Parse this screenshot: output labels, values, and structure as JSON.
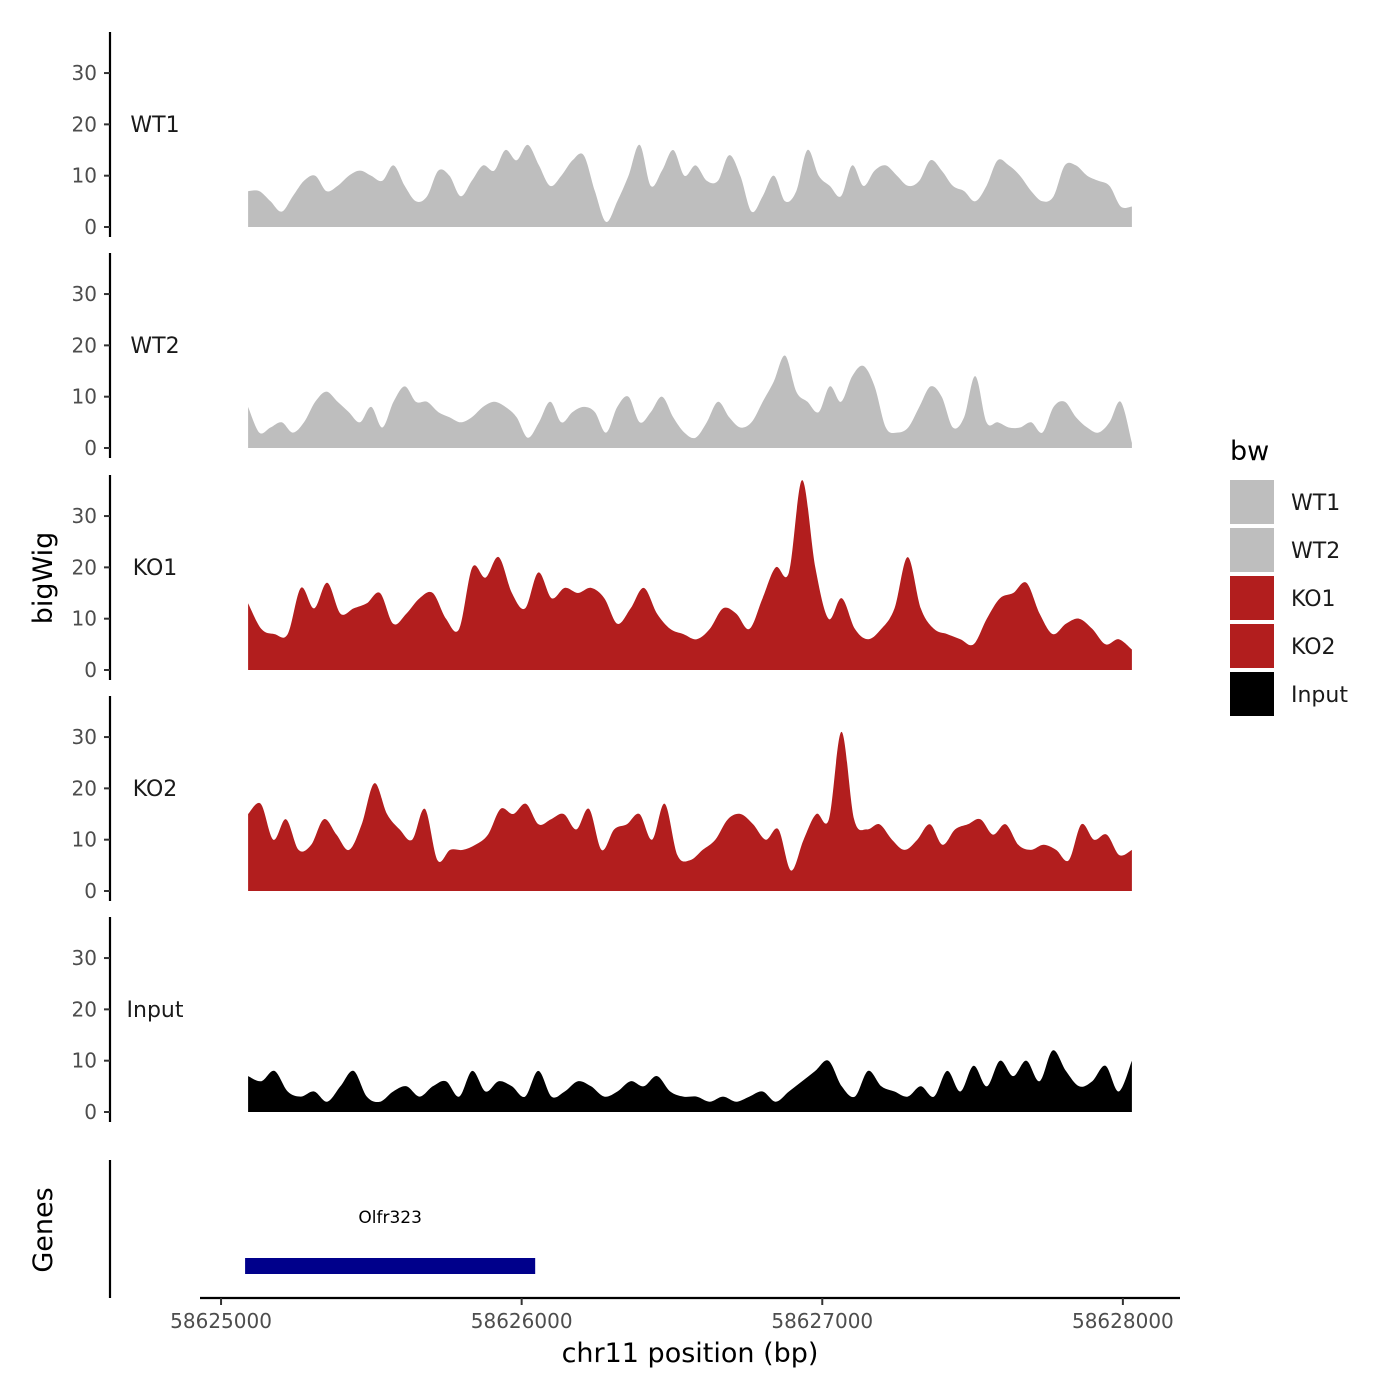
{
  "chart_data": {
    "type": "area",
    "title": "",
    "ylabel": "bigWig",
    "xlabel": "chr11 position (bp)",
    "ylim": [
      0,
      38
    ],
    "yticks": [
      0,
      10,
      20,
      30
    ],
    "xlim": [
      58624930,
      58628190
    ],
    "xticks": [
      58625000,
      58626000,
      58627000,
      58628000
    ],
    "x_tick_labels": [
      "58625000",
      "58626000",
      "58627000",
      "58628000"
    ],
    "series_x_range": [
      58625090,
      58628030
    ],
    "legend": {
      "title": "bw",
      "placement": "right",
      "entries": [
        {
          "label": "WT1",
          "color": "#bebebe"
        },
        {
          "label": "WT2",
          "color": "#bebebe"
        },
        {
          "label": "KO1",
          "color": "#b21e1e"
        },
        {
          "label": "KO2",
          "color": "#b21e1e"
        },
        {
          "label": "Input",
          "color": "#000000"
        }
      ]
    },
    "series": [
      {
        "name": "WT1",
        "color": "#bebebe",
        "values": [
          7,
          7,
          5,
          3,
          6,
          9,
          10,
          7,
          8,
          10,
          11,
          10,
          9,
          12,
          8,
          5,
          6,
          11,
          10,
          6,
          9,
          12,
          11,
          15,
          13,
          16,
          12,
          8,
          10,
          13,
          14,
          7,
          1,
          5,
          10,
          16,
          8,
          11,
          15,
          10,
          12,
          9,
          9,
          14,
          10,
          3,
          6,
          10,
          5,
          7,
          15,
          10,
          8,
          6,
          12,
          8,
          11,
          12,
          10,
          8,
          9,
          13,
          11,
          8,
          7,
          5,
          8,
          13,
          12,
          10,
          7,
          5,
          6,
          12,
          12,
          10,
          9,
          8,
          4,
          4
        ]
      },
      {
        "name": "WT2",
        "color": "#bebebe",
        "values": [
          8,
          3,
          4,
          5,
          3,
          5,
          9,
          11,
          9,
          7,
          5,
          8,
          4,
          9,
          12,
          9,
          9,
          7,
          6,
          5,
          6,
          8,
          9,
          8,
          6,
          2,
          5,
          9,
          5,
          7,
          8,
          7,
          3,
          8,
          10,
          5,
          7,
          10,
          6,
          3,
          2,
          5,
          9,
          6,
          4,
          5,
          9,
          13,
          18,
          11,
          9,
          7,
          12,
          9,
          14,
          16,
          12,
          4,
          3,
          4,
          8,
          12,
          10,
          4,
          6,
          14,
          5,
          5,
          4,
          4,
          5,
          3,
          8,
          9,
          6,
          4,
          3,
          5,
          9,
          1
        ]
      },
      {
        "name": "KO1",
        "color": "#b21e1e",
        "values": [
          13,
          8,
          7,
          7,
          16,
          12,
          17,
          11,
          12,
          13,
          15,
          9,
          11,
          14,
          15,
          10,
          8,
          20,
          18,
          22,
          15,
          12,
          19,
          14,
          16,
          15,
          16,
          14,
          9,
          12,
          16,
          11,
          8,
          7,
          6,
          8,
          12,
          11,
          8,
          14,
          20,
          19,
          37,
          20,
          10,
          14,
          8,
          6,
          8,
          12,
          22,
          12,
          8,
          7,
          6,
          5,
          10,
          14,
          15,
          17,
          11,
          7,
          9,
          10,
          8,
          5,
          6,
          4
        ]
      },
      {
        "name": "KO2",
        "color": "#b21e1e",
        "values": [
          15,
          17,
          10,
          14,
          8,
          9,
          14,
          11,
          8,
          13,
          21,
          15,
          12,
          10,
          16,
          6,
          8,
          8,
          9,
          11,
          16,
          15,
          17,
          13,
          14,
          15,
          12,
          16,
          8,
          12,
          13,
          15,
          10,
          17,
          7,
          6,
          8,
          10,
          14,
          15,
          13,
          10,
          12,
          4,
          10,
          15,
          14,
          31,
          14,
          12,
          13,
          10,
          8,
          10,
          13,
          9,
          12,
          13,
          14,
          11,
          13,
          9,
          8,
          9,
          8,
          6,
          13,
          10,
          11,
          7,
          8
        ]
      },
      {
        "name": "Input",
        "color": "#000000",
        "values": [
          7,
          6,
          8,
          4,
          3,
          4,
          2,
          5,
          8,
          3,
          2,
          4,
          5,
          3,
          5,
          6,
          3,
          8,
          4,
          6,
          5,
          3,
          8,
          3,
          4,
          6,
          5,
          3,
          4,
          6,
          5,
          7,
          4,
          3,
          3,
          2,
          3,
          2,
          3,
          4,
          2,
          4,
          6,
          8,
          10,
          5,
          3,
          8,
          5,
          4,
          3,
          5,
          3,
          8,
          4,
          9,
          5,
          10,
          7,
          10,
          6,
          12,
          8,
          5,
          6,
          9,
          4,
          10
        ]
      }
    ],
    "gene_track": {
      "ylabel": "Genes",
      "genes": [
        {
          "name": "Olfr323",
          "start": 58625080,
          "end": 58626045,
          "color": "#00008b"
        }
      ]
    }
  }
}
